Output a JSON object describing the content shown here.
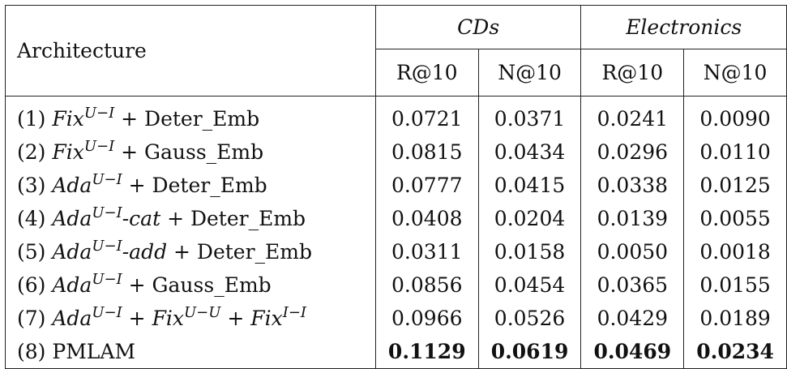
{
  "table": {
    "header": {
      "architecture": "Architecture",
      "groups": [
        "CDs",
        "Electronics"
      ],
      "metrics": [
        "R@10",
        "N@10",
        "R@10",
        "N@10"
      ]
    },
    "rows": [
      {
        "num": "(1)",
        "base": "Fix",
        "sup": "U−I",
        "mid": "",
        "rest": " + Deter_Emb",
        "values": [
          "0.0721",
          "0.0371",
          "0.0241",
          "0.0090"
        ]
      },
      {
        "num": "(2)",
        "base": "Fix",
        "sup": "U−I",
        "mid": "",
        "rest": " + Gauss_Emb",
        "values": [
          "0.0815",
          "0.0434",
          "0.0296",
          "0.0110"
        ]
      },
      {
        "num": "(3)",
        "base": "Ada",
        "sup": "U−I",
        "mid": "",
        "rest": " + Deter_Emb",
        "values": [
          "0.0777",
          "0.0415",
          "0.0338",
          "0.0125"
        ]
      },
      {
        "num": "(4)",
        "base": "Ada",
        "sup": "U−I",
        "mid": "-cat",
        "rest": " + Deter_Emb",
        "values": [
          "0.0408",
          "0.0204",
          "0.0139",
          "0.0055"
        ]
      },
      {
        "num": "(5)",
        "base": "Ada",
        "sup": "U−I",
        "mid": "-add",
        "rest": " + Deter_Emb",
        "values": [
          "0.0311",
          "0.0158",
          "0.0050",
          "0.0018"
        ]
      },
      {
        "num": "(6)",
        "base": "Ada",
        "sup": "U−I",
        "mid": "",
        "rest": " + Gauss_Emb",
        "values": [
          "0.0856",
          "0.0454",
          "0.0365",
          "0.0155"
        ]
      },
      {
        "num": "(7)",
        "base": "Ada",
        "sup": "U−I",
        "mid": "",
        "rest": " + ",
        "base2": "Fix",
        "sup2": "U−U",
        "rest2": " + ",
        "base3": "Fix",
        "sup3": "I−I",
        "values": [
          "0.0966",
          "0.0526",
          "0.0429",
          "0.0189"
        ]
      },
      {
        "num": "(8)",
        "label": "PMLAM",
        "values": [
          "0.1129",
          "0.0619",
          "0.0469",
          "0.0234"
        ]
      }
    ]
  }
}
